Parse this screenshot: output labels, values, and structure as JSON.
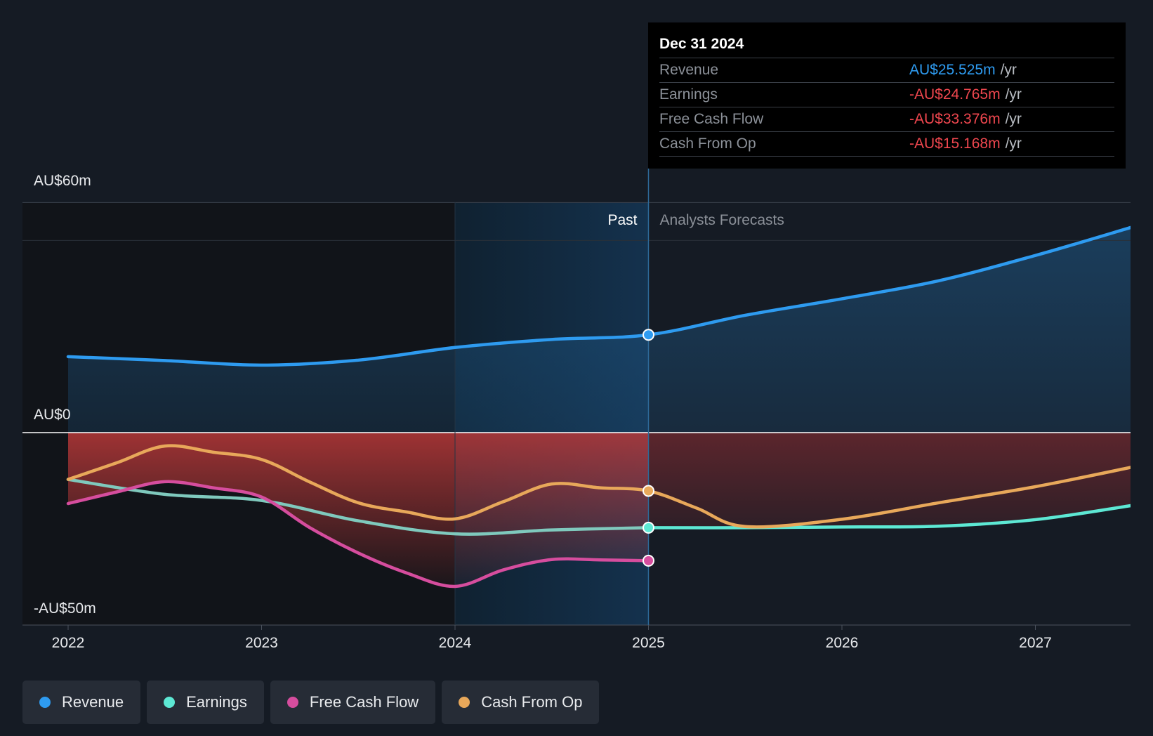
{
  "tooltip": {
    "date": "Dec 31 2024",
    "rows": [
      {
        "label": "Revenue",
        "value": "AU$25.525m",
        "unit": "/yr",
        "color": "#2e9bf0"
      },
      {
        "label": "Earnings",
        "value": "-AU$24.765m",
        "unit": "/yr",
        "color": "#f0474f"
      },
      {
        "label": "Free Cash Flow",
        "value": "-AU$33.376m",
        "unit": "/yr",
        "color": "#f0474f"
      },
      {
        "label": "Cash From Op",
        "value": "-AU$15.168m",
        "unit": "/yr",
        "color": "#f0474f"
      }
    ]
  },
  "chart_data": {
    "type": "line",
    "title": "",
    "y_tick_labels": [
      "AU$60m",
      "AU$0",
      "-AU$50m"
    ],
    "y_ticks": [
      60,
      0,
      -50
    ],
    "ylim": [
      -50,
      60
    ],
    "xlim": [
      2021.76,
      2027.5
    ],
    "x_ticks": [
      2022,
      2023,
      2024,
      2025,
      2026,
      2027
    ],
    "x_tick_labels": [
      "2022",
      "2023",
      "2024",
      "2025",
      "2026",
      "2027"
    ],
    "past_label": "Past",
    "forecast_label": "Analysts Forecasts",
    "past_end": 2025.0,
    "highlight_start": 2024.0,
    "series": [
      {
        "name": "Revenue",
        "color": "#2e9bf0",
        "x": [
          2022.0,
          2022.5,
          2023.0,
          2023.5,
          2024.0,
          2024.5,
          2025.0,
          2025.5,
          2026.0,
          2026.5,
          2027.0,
          2027.5
        ],
        "y": [
          19.8,
          18.8,
          17.6,
          18.9,
          22.2,
          24.3,
          25.5,
          30.6,
          34.9,
          39.6,
          46.2,
          53.6
        ]
      },
      {
        "name": "Earnings",
        "color": "#5de8d4",
        "x": [
          2022.0,
          2022.5,
          2023.0,
          2023.5,
          2024.0,
          2024.5,
          2025.0,
          2025.5,
          2026.0,
          2026.5,
          2027.0,
          2027.5
        ],
        "y": [
          -12.2,
          -16.1,
          -17.7,
          -23.0,
          -26.4,
          -25.4,
          -24.8,
          -24.8,
          -24.6,
          -24.4,
          -22.7,
          -19.0
        ]
      },
      {
        "name": "Free Cash Flow",
        "color": "#d64d9e",
        "x": [
          2022.0,
          2022.25,
          2022.5,
          2022.75,
          2023.0,
          2023.25,
          2023.5,
          2023.75,
          2024.0,
          2024.25,
          2024.5,
          2024.75,
          2025.0
        ],
        "y": [
          -18.5,
          -15.5,
          -12.8,
          -14.4,
          -16.8,
          -24.8,
          -31.4,
          -36.6,
          -40.1,
          -35.8,
          -33.1,
          -33.2,
          -33.4
        ]
      },
      {
        "name": "Cash From Op",
        "color": "#e8a85a",
        "x": [
          2022.0,
          2022.25,
          2022.5,
          2022.75,
          2023.0,
          2023.25,
          2023.5,
          2023.75,
          2024.0,
          2024.25,
          2024.5,
          2024.75,
          2025.0,
          2025.25,
          2025.5,
          2026.0,
          2026.5,
          2027.0,
          2027.5
        ],
        "y": [
          -12.2,
          -7.9,
          -3.5,
          -5.1,
          -7.0,
          -12.9,
          -18.3,
          -20.7,
          -22.5,
          -18.0,
          -13.4,
          -14.4,
          -15.2,
          -19.7,
          -24.5,
          -22.6,
          -18.3,
          -14.1,
          -9.0
        ]
      }
    ],
    "markers_at": 2025.0
  },
  "legend": [
    "Revenue",
    "Earnings",
    "Free Cash Flow",
    "Cash From Op"
  ]
}
